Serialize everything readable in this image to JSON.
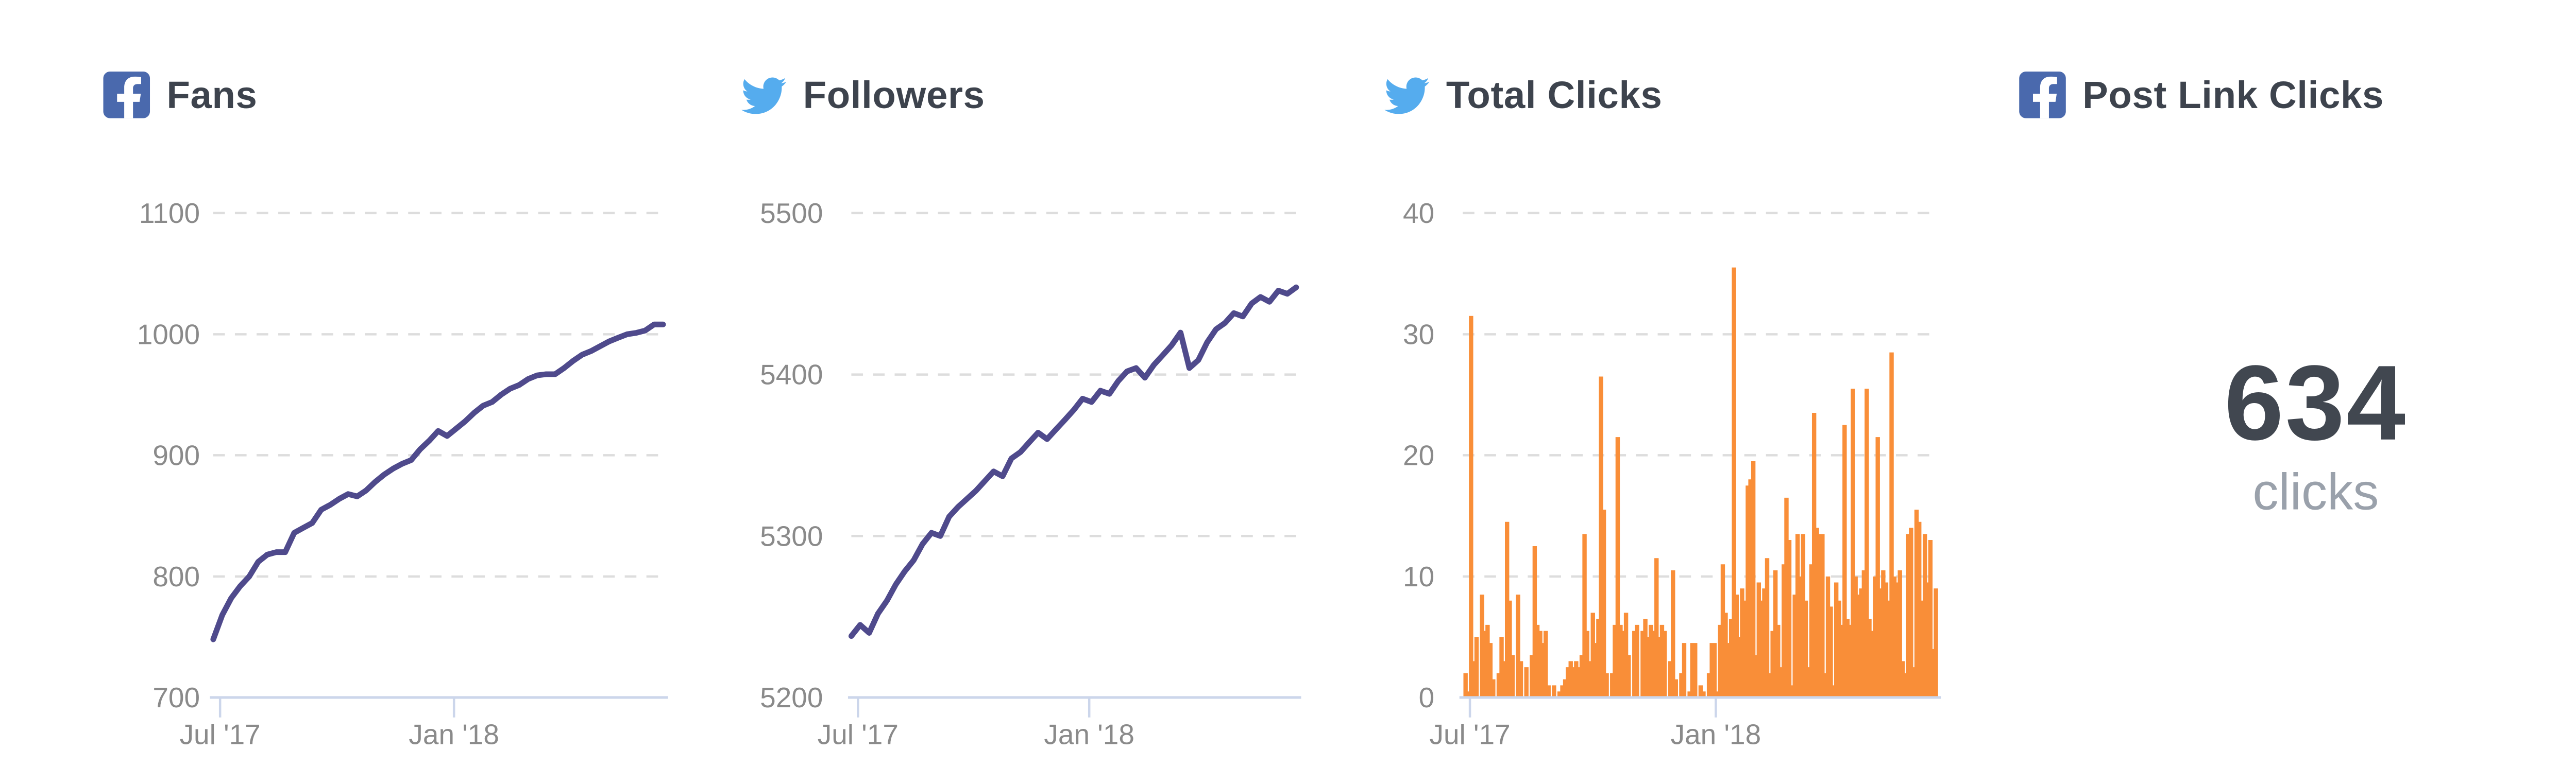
{
  "panels": {
    "fans": {
      "icon": "facebook",
      "title": "Fans"
    },
    "followers": {
      "icon": "twitter",
      "title": "Followers"
    },
    "total_clicks": {
      "icon": "twitter",
      "title": "Total Clicks"
    },
    "post_link_clicks": {
      "icon": "facebook",
      "title": "Post Link Clicks",
      "value": "634",
      "unit": "clicks"
    }
  },
  "colors": {
    "facebook_blue": "#4a69ad",
    "twitter_blue": "#55acee",
    "line_purple": "#4f4a8c",
    "bars_orange": "#f98e38",
    "title_text": "#3d434d",
    "big_number_text": "#414750",
    "muted_text": "#9aa1ab",
    "axis_label": "#8a8a8a",
    "gridline": "#dddddd",
    "axis_line": "#ccd6eb"
  },
  "chart_data": [
    {
      "type": "line",
      "title": "Fans",
      "source": "facebook",
      "xlabel": "",
      "ylabel": "",
      "x_range": [
        "Jul 2017",
        "Jun 2018"
      ],
      "x_ticks": [
        {
          "label": "Jul '17",
          "pos": 0.015
        },
        {
          "label": "Jan '18",
          "pos": 0.535
        }
      ],
      "ylim": [
        700,
        1100
      ],
      "y_ticks": [
        700,
        800,
        900,
        1000,
        1100
      ],
      "grid": "dashed",
      "legend": "none",
      "color": "#4f4a8c",
      "series": [
        {
          "name": "Fans",
          "values": [
            748,
            768,
            782,
            792,
            800,
            812,
            818,
            820,
            820,
            836,
            840,
            844,
            855,
            859,
            864,
            868,
            866,
            871,
            878,
            884,
            889,
            893,
            896,
            905,
            912,
            920,
            916,
            922,
            928,
            935,
            941,
            944,
            950,
            955,
            958,
            963,
            966,
            967,
            967,
            972,
            978,
            983,
            986,
            990,
            994,
            997,
            1000,
            1001,
            1003,
            1008,
            1008
          ]
        }
      ]
    },
    {
      "type": "line",
      "title": "Followers",
      "source": "twitter",
      "xlabel": "",
      "ylabel": "",
      "x_range": [
        "Jul 2017",
        "Jun 2018"
      ],
      "x_ticks": [
        {
          "label": "Jul '17",
          "pos": 0.015
        },
        {
          "label": "Jan '18",
          "pos": 0.535
        }
      ],
      "ylim": [
        5200,
        5500
      ],
      "y_ticks": [
        5200,
        5300,
        5400,
        5500
      ],
      "grid": "dashed",
      "legend": "none",
      "color": "#4f4a8c",
      "series": [
        {
          "name": "Followers",
          "values": [
            5238,
            5245,
            5240,
            5252,
            5260,
            5270,
            5278,
            5285,
            5295,
            5302,
            5300,
            5312,
            5318,
            5323,
            5328,
            5334,
            5340,
            5337,
            5348,
            5352,
            5358,
            5364,
            5360,
            5366,
            5372,
            5378,
            5385,
            5383,
            5390,
            5388,
            5396,
            5402,
            5404,
            5398,
            5406,
            5412,
            5418,
            5426,
            5404,
            5409,
            5420,
            5428,
            5432,
            5438,
            5436,
            5444,
            5448,
            5445,
            5452,
            5450,
            5454
          ]
        }
      ]
    },
    {
      "type": "bar",
      "title": "Total Clicks",
      "source": "twitter",
      "xlabel": "",
      "ylabel": "",
      "x_range": [
        "Jul 2017",
        "Jun 2018"
      ],
      "x_ticks": [
        {
          "label": "Jul '17",
          "pos": 0.015
        },
        {
          "label": "Jan '18",
          "pos": 0.535
        }
      ],
      "ylim": [
        0,
        40
      ],
      "y_ticks": [
        0,
        10,
        20,
        30,
        40
      ],
      "grid": "dashed",
      "legend": "none",
      "color": "#f98e38",
      "series": [
        {
          "name": "Total Clicks",
          "values": [
            0,
            2,
            0.5,
            31.5,
            3,
            5,
            0,
            8.5,
            5.5,
            6,
            4.5,
            1.5,
            0,
            2,
            5,
            3,
            14.5,
            8,
            3.5,
            0,
            8.5,
            3,
            0,
            2.5,
            0,
            3.5,
            12.5,
            6,
            5.5,
            4.5,
            5.5,
            1,
            0,
            1,
            0,
            0.5,
            1,
            1.5,
            2.5,
            3,
            2.5,
            3,
            2.5,
            3.5,
            13.5,
            5.5,
            3,
            7,
            4.5,
            6.5,
            26.5,
            15.5,
            2,
            0,
            2,
            6,
            21.5,
            6,
            5.5,
            7,
            3.5,
            0,
            5.5,
            6,
            0,
            5.5,
            6.5,
            5,
            6,
            5.5,
            11.5,
            5,
            6,
            5.5,
            0,
            3,
            10.5,
            1.5,
            0,
            2,
            4.5,
            0,
            0.5,
            4.5,
            4.5,
            0,
            1,
            0.5,
            0,
            2,
            4.5,
            4.5,
            0.5,
            6,
            11,
            7,
            4.5,
            6.5,
            35.5,
            8.5,
            5,
            9,
            8,
            17.5,
            18,
            19.5,
            3.5,
            9.5,
            8,
            9,
            11.5,
            2,
            5.5,
            10.5,
            6,
            2.5,
            11,
            16.5,
            13,
            1,
            8.5,
            13.5,
            10,
            13.5,
            8,
            2.5,
            11,
            23.5,
            14,
            13.5,
            13.5,
            2,
            10,
            7.5,
            1,
            9.5,
            8,
            6,
            22.5,
            6.5,
            6,
            25.5,
            10,
            8.5,
            9,
            10.5,
            25.5,
            6.5,
            5.5,
            10,
            21.5,
            9,
            10.5,
            9.5,
            8,
            28.5,
            10,
            9.5,
            10.5,
            3,
            2,
            13.5,
            14,
            2.5,
            15.5,
            14.5,
            8,
            13.5,
            9.5,
            13,
            4,
            9
          ]
        }
      ]
    }
  ],
  "stat_card": {
    "title": "Post Link Clicks",
    "value": "634",
    "unit": "clicks"
  }
}
